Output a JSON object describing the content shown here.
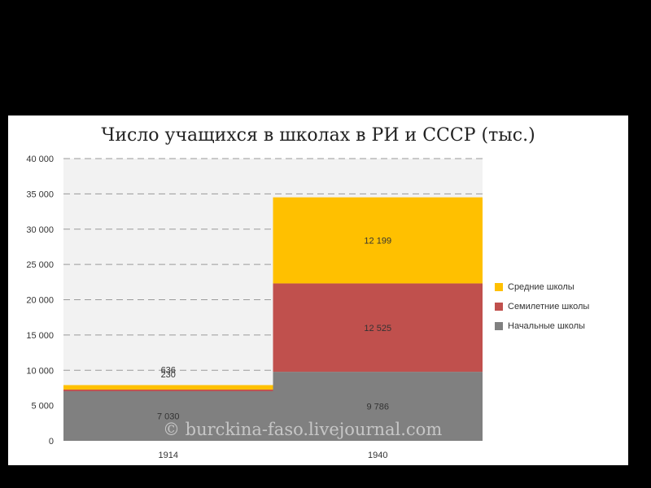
{
  "chart_data": {
    "type": "bar",
    "stacked": true,
    "title": "Число учащихся в школах в РИ и СССР (тыс.)",
    "categories": [
      "1914",
      "1940"
    ],
    "series": [
      {
        "name": "Начальные школы",
        "values": [
          7030,
          9786
        ],
        "labels": [
          "7 030",
          "9 786"
        ],
        "color": "#808080"
      },
      {
        "name": "Семилетние школы",
        "values": [
          230,
          12525
        ],
        "labels": [
          "230",
          "12 525"
        ],
        "color": "#c0504d"
      },
      {
        "name": "Средние школы",
        "values": [
          636,
          12199
        ],
        "labels": [
          "636",
          "12 199"
        ],
        "color": "#ffc000"
      }
    ],
    "ylim": [
      0,
      40000
    ],
    "yticks": [
      0,
      5000,
      10000,
      15000,
      20000,
      25000,
      30000,
      35000,
      40000
    ],
    "ytick_labels": [
      "0",
      "5 000",
      "10 000",
      "15 000",
      "20 000",
      "25 000",
      "30 000",
      "35 000",
      "40 000"
    ],
    "grid": true,
    "legend_position": "right"
  },
  "watermark": "© burckina-faso.livejournal.com",
  "colors": {
    "background": "#000000",
    "plot_area": "#f2f2f2",
    "panel": "#ffffff"
  }
}
